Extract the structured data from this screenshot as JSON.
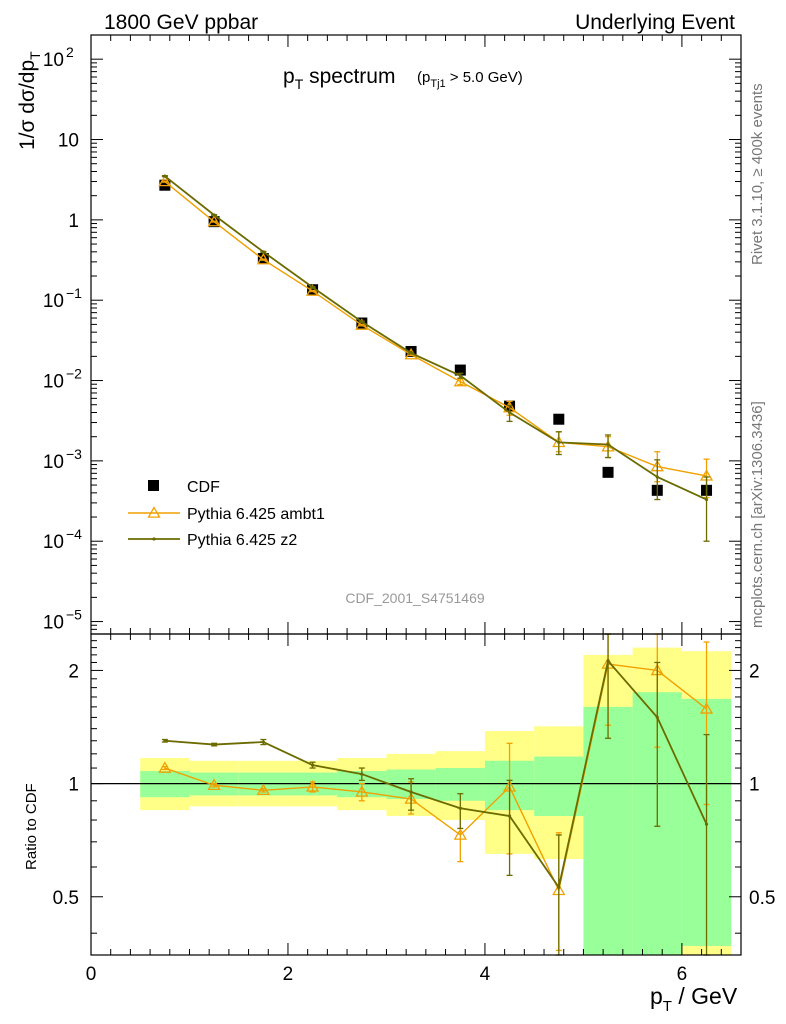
{
  "header": {
    "left": "1800 GeV ppbar",
    "right": "Underlying Event",
    "side_top": "Rivet 3.1.10, ≥ 400k events",
    "side_bottom": "mcplots.cern.ch [arXiv:1306.3436]",
    "watermark": "CDF_2001_S4751469"
  },
  "colors": {
    "cdf": "#000000",
    "ambt1": "#f0a000",
    "z2": "#6b6b00",
    "band_inner": "#99ff99",
    "band_outer": "#ffff88"
  },
  "chart_data": [
    {
      "type": "scatter",
      "panel": "main",
      "title_main": "p",
      "title_sub": "T",
      "title_tail": " spectrum",
      "cut_main": "(p",
      "cut_sub": "Tj1",
      "cut_tail": " > 5.0 GeV)",
      "ylabel": "1/σ dσ/dp",
      "ylabel_sub": "T",
      "yscale": "log",
      "ylim": [
        7e-06,
        200
      ],
      "xlim": [
        0,
        6.6
      ],
      "legend_position": "bottom-left",
      "y_ticks": [
        {
          "v": 100,
          "label": "10",
          "exp": "2"
        },
        {
          "v": 10,
          "label": "10",
          "exp": ""
        },
        {
          "v": 1,
          "label": "1",
          "exp": ""
        },
        {
          "v": 0.1,
          "label": "10",
          "exp": "−1"
        },
        {
          "v": 0.01,
          "label": "10",
          "exp": "−2"
        },
        {
          "v": 0.001,
          "label": "10",
          "exp": "−3"
        },
        {
          "v": 0.0001,
          "label": "10",
          "exp": "−4"
        },
        {
          "v": 1e-05,
          "label": "10",
          "exp": "−5"
        }
      ],
      "series": [
        {
          "name": "CDF",
          "style": "data",
          "x": [
            0.75,
            1.25,
            1.75,
            2.25,
            2.75,
            3.25,
            3.75,
            4.25,
            4.75,
            5.25,
            5.75,
            6.25
          ],
          "y": [
            2.7,
            0.95,
            0.33,
            0.135,
            0.052,
            0.023,
            0.0135,
            0.0048,
            0.0033,
            0.00072,
            0.00043,
            0.00043
          ]
        },
        {
          "name": "Pythia 6.425 ambt1",
          "style": "ambt1",
          "x": [
            0.75,
            1.25,
            1.75,
            2.25,
            2.75,
            3.25,
            3.75,
            4.25,
            4.75,
            5.25,
            5.75,
            6.25
          ],
          "y": [
            3.0,
            0.95,
            0.32,
            0.13,
            0.049,
            0.021,
            0.0097,
            0.0046,
            0.0017,
            0.0015,
            0.00085,
            0.00065
          ],
          "err_lo": [
            0.05,
            0.01,
            0.005,
            0.002,
            0.001,
            0.0005,
            0.0008,
            0.0009,
            0.0004,
            0.0004,
            0.0003,
            0.0003
          ],
          "err_hi": [
            0.05,
            0.01,
            0.005,
            0.002,
            0.001,
            0.0005,
            0.0008,
            0.0009,
            0.0006,
            0.0005,
            0.00045,
            0.0004
          ]
        },
        {
          "name": "Pythia 6.425 z2",
          "style": "z2",
          "x": [
            0.75,
            1.25,
            1.75,
            2.25,
            2.75,
            3.25,
            3.75,
            4.25,
            4.75,
            5.25,
            5.75,
            6.25
          ],
          "y": [
            3.5,
            1.15,
            0.4,
            0.145,
            0.054,
            0.022,
            0.0115,
            0.004,
            0.0017,
            0.0016,
            0.00063,
            0.00033
          ],
          "err_lo": [
            0.05,
            0.01,
            0.005,
            0.002,
            0.001,
            0.0005,
            0.0008,
            0.0009,
            0.0005,
            0.0005,
            0.0003,
            0.00023
          ],
          "err_hi": [
            0.05,
            0.01,
            0.005,
            0.002,
            0.001,
            0.0005,
            0.0008,
            0.0009,
            0.0006,
            0.0005,
            0.0004,
            0.0003
          ]
        }
      ]
    },
    {
      "type": "line",
      "panel": "ratio",
      "ylabel": "Ratio to CDF",
      "xlabel": "p",
      "xlabel_sub": "T",
      "xlabel_tail": " / GeV",
      "yscale": "log",
      "ylim": [
        0.35,
        2.5
      ],
      "xlim": [
        0,
        6.6
      ],
      "x_ticks": [
        0,
        2,
        4,
        6
      ],
      "y_ticks": [
        0.5,
        1,
        2
      ],
      "band_edges": [
        0.5,
        1.0,
        1.5,
        2.0,
        2.5,
        3.0,
        3.5,
        4.0,
        4.5,
        5.0,
        5.5,
        6.0,
        6.5
      ],
      "band_inner_lo": [
        0.92,
        0.93,
        0.93,
        0.93,
        0.92,
        0.91,
        0.9,
        0.85,
        0.82,
        0.3,
        0.3,
        0.37
      ],
      "band_inner_hi": [
        1.08,
        1.07,
        1.07,
        1.07,
        1.08,
        1.09,
        1.1,
        1.15,
        1.18,
        1.6,
        1.75,
        1.68
      ],
      "band_outer_lo": [
        0.85,
        0.87,
        0.87,
        0.87,
        0.85,
        0.82,
        0.8,
        0.65,
        0.63,
        0.55,
        0.3,
        0.3
      ],
      "band_outer_hi": [
        1.17,
        1.15,
        1.15,
        1.15,
        1.17,
        1.2,
        1.22,
        1.38,
        1.42,
        2.2,
        2.3,
        2.25
      ],
      "series": [
        {
          "name": "Pythia 6.425 ambt1",
          "style": "ambt1",
          "x": [
            0.75,
            1.25,
            1.75,
            2.25,
            2.75,
            3.25,
            3.75,
            4.25,
            4.75,
            5.25,
            5.75,
            6.25
          ],
          "y": [
            1.1,
            0.99,
            0.96,
            0.98,
            0.95,
            0.91,
            0.73,
            0.98,
            0.52,
            2.08,
            2.0,
            1.58
          ],
          "err_lo": [
            0.01,
            0.01,
            0.01,
            0.03,
            0.05,
            0.08,
            0.11,
            0.33,
            0.16,
            0.65,
            0.75,
            0.7
          ],
          "err_hi": [
            0.01,
            0.01,
            0.01,
            0.03,
            0.05,
            0.1,
            0.13,
            0.3,
            0.22,
            0.9,
            0.9,
            0.8
          ]
        },
        {
          "name": "Pythia 6.425 z2",
          "style": "z2",
          "x": [
            0.75,
            1.25,
            1.75,
            2.25,
            2.75,
            3.25,
            3.75,
            4.25,
            4.75,
            5.25,
            5.75,
            6.25
          ],
          "y": [
            1.3,
            1.27,
            1.29,
            1.12,
            1.06,
            0.95,
            0.86,
            0.82,
            0.53,
            2.12,
            1.5,
            0.78
          ],
          "err_lo": [
            0.01,
            0.01,
            0.02,
            0.02,
            0.04,
            0.1,
            0.1,
            0.25,
            0.2,
            0.8,
            0.73,
            0.55
          ],
          "err_hi": [
            0.01,
            0.01,
            0.02,
            0.02,
            0.04,
            0.08,
            0.08,
            0.2,
            0.2,
            0.4,
            0.6,
            0.57
          ]
        }
      ]
    }
  ]
}
